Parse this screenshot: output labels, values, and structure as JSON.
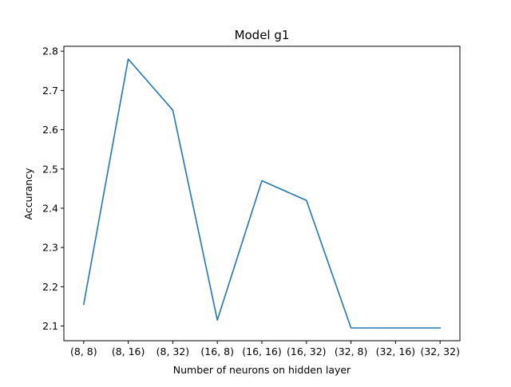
{
  "chart_data": {
    "type": "line",
    "title": "Model g1",
    "xlabel": "Number of neurons on hidden layer",
    "ylabel": "Accurancy",
    "categories": [
      "(8, 8)",
      "(8, 16)",
      "(8, 32)",
      "(16, 8)",
      "(16, 16)",
      "(16, 32)",
      "(32, 8)",
      "(32, 16)",
      "(32, 32)"
    ],
    "series": [
      {
        "values": [
          2.155,
          2.78,
          2.65,
          2.115,
          2.47,
          2.42,
          2.095,
          2.095,
          2.095
        ],
        "color": "#1f77b4"
      }
    ],
    "yticks": [
      "2.1",
      "2.2",
      "2.3",
      "2.4",
      "2.5",
      "2.6",
      "2.7",
      "2.8"
    ],
    "ylim": [
      2.0625,
      2.8125
    ],
    "grid": false,
    "legend": "none"
  }
}
